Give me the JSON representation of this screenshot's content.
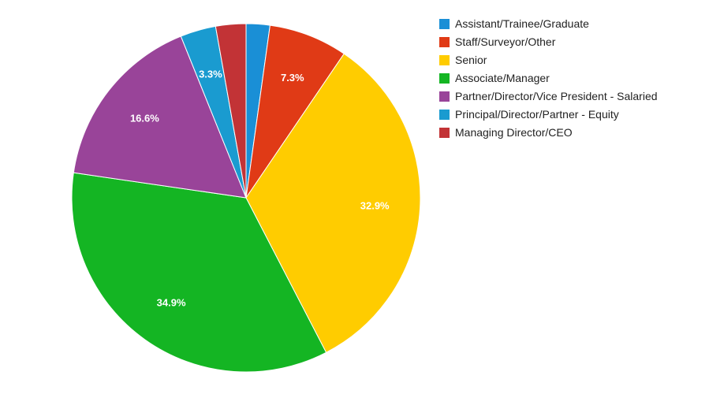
{
  "chart_data": {
    "type": "pie",
    "title": "",
    "legend_position": "right",
    "slices": [
      {
        "name": "Assistant/Trainee/Graduate",
        "value": 2.2,
        "label": "",
        "color": "#1a8fd6"
      },
      {
        "name": "Staff/Surveyor/Other",
        "value": 7.3,
        "label": "7.3%",
        "color": "#e03a16"
      },
      {
        "name": "Senior",
        "value": 32.9,
        "label": "32.9%",
        "color": "#ffcc00"
      },
      {
        "name": "Associate/Manager",
        "value": 34.9,
        "label": "34.9%",
        "color": "#14b523"
      },
      {
        "name": "Partner/Director/Vice President - Salaried",
        "value": 16.6,
        "label": "16.6%",
        "color": "#994499"
      },
      {
        "name": "Principal/Director/Partner - Equity",
        "value": 3.3,
        "label": "3.3%",
        "color": "#1a9bd0"
      },
      {
        "name": "Managing Director/CEO",
        "value": 2.8,
        "label": "",
        "color": "#c23336"
      }
    ]
  }
}
